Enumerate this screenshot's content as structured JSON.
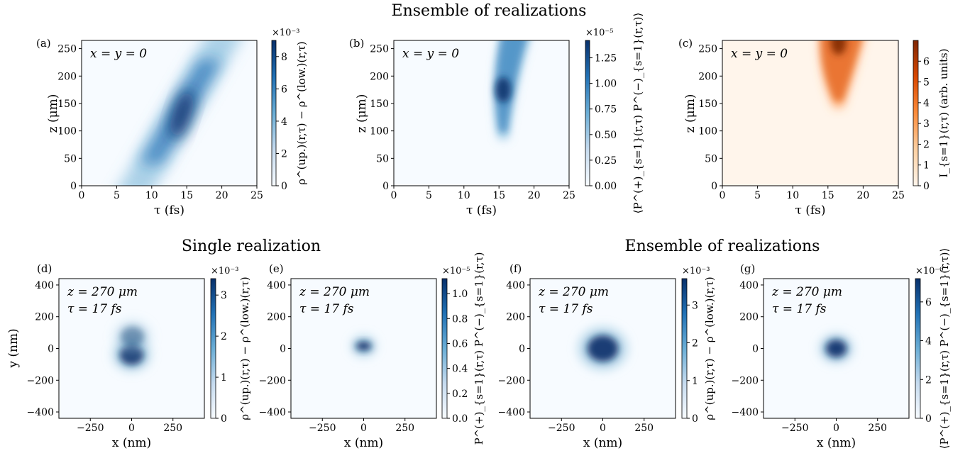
{
  "sections": [
    {
      "id": "top",
      "title": "Ensemble of realizations"
    },
    {
      "id": "bottom-left",
      "title": "Single realization"
    },
    {
      "id": "bottom-right",
      "title": "Ensemble of realizations"
    }
  ],
  "chart_data": [
    {
      "type": "heatmap",
      "panel": "(a)",
      "annotation": [
        "x = y = 0"
      ],
      "xlabel": "τ (fs)",
      "ylabel": "z (μm)",
      "xlim": [
        0,
        25
      ],
      "ylim": [
        0,
        265
      ],
      "xticks": [
        "0",
        "5",
        "10",
        "15",
        "20",
        "25"
      ],
      "yticks": [
        "0",
        "50",
        "100",
        "150",
        "200",
        "250"
      ],
      "colormap": "Blues",
      "color_high": "#08306b",
      "colorbar": {
        "label": "ρ^(up.)(r,τ) − ρ^(low.)(r,τ)",
        "exponent": "×10⁻³",
        "max": 9,
        "ticks": [
          "0",
          "2",
          "4",
          "6",
          "8"
        ]
      },
      "features": [
        {
          "shape": "band",
          "peak_tau": 14.3,
          "peak_z": 130,
          "peak_value": 9
        }
      ]
    },
    {
      "type": "heatmap",
      "panel": "(b)",
      "annotation": [
        "x = y = 0"
      ],
      "xlabel": "τ (fs)",
      "ylabel": "z (μm)",
      "xlim": [
        0,
        25
      ],
      "ylim": [
        0,
        265
      ],
      "xticks": [
        "0",
        "5",
        "10",
        "15",
        "20",
        "25"
      ],
      "yticks": [
        "0",
        "50",
        "100",
        "150",
        "200",
        "250"
      ],
      "colormap": "Blues",
      "color_high": "#08306b",
      "colorbar": {
        "label": "⟨P^(+)_{s=1}(r,τ) P^(−)_{s=1}(r,τ)⟩",
        "exponent": "×10⁻⁵",
        "max": 1.42,
        "ticks": [
          "0.00",
          "0.25",
          "0.50",
          "0.75",
          "1.00",
          "1.25"
        ]
      },
      "features": [
        {
          "shape": "plume",
          "peak_tau": 15.6,
          "peak_z": 175,
          "peak_value": 1.4
        }
      ]
    },
    {
      "type": "heatmap",
      "panel": "(c)",
      "annotation": [
        "x = y = 0"
      ],
      "xlabel": "τ (fs)",
      "ylabel": "z (μm)",
      "xlim": [
        0,
        25
      ],
      "ylim": [
        0,
        265
      ],
      "xticks": [
        "0",
        "5",
        "10",
        "15",
        "20",
        "25"
      ],
      "yticks": [
        "0",
        "50",
        "100",
        "150",
        "200",
        "250"
      ],
      "colormap": "Oranges",
      "color_high": "#7f2704",
      "colorbar": {
        "label": "I_{s=1}(r,τ) (arb. units)",
        "exponent": "",
        "max": 7,
        "ticks": [
          "0",
          "1",
          "2",
          "3",
          "4",
          "5",
          "6"
        ]
      },
      "features": [
        {
          "shape": "plume",
          "peak_tau": 16.5,
          "peak_z": 262,
          "peak_value": 7
        }
      ]
    },
    {
      "type": "heatmap",
      "panel": "(d)",
      "annotation": [
        "z = 270 μm",
        "τ = 17 fs"
      ],
      "xlabel": "x (nm)",
      "ylabel": "y (nm)",
      "xlim": [
        -440,
        440
      ],
      "ylim": [
        -440,
        440
      ],
      "xticks": [
        "−250",
        "0",
        "250"
      ],
      "yticks": [
        "−400",
        "−200",
        "0",
        "200",
        "400"
      ],
      "colormap": "Blues",
      "color_high": "#08306b",
      "colorbar": {
        "label": "ρ^(up.)(r,τ) − ρ^(low.)(r,τ)",
        "exponent": "×10⁻³",
        "max": 3.4,
        "ticks": [
          "0",
          "1",
          "2",
          "3"
        ]
      },
      "features": [
        {
          "shape": "spot",
          "x": 0,
          "y": -40,
          "peak_value": 3.2
        },
        {
          "shape": "spot",
          "x": 5,
          "y": 75,
          "peak_value": 1.7
        }
      ]
    },
    {
      "type": "heatmap",
      "panel": "(e)",
      "annotation": [
        "z = 270 μm",
        "τ = 17 fs"
      ],
      "xlabel": "x (nm)",
      "ylabel": "",
      "xlim": [
        -440,
        440
      ],
      "ylim": [
        -440,
        440
      ],
      "xticks": [
        "−250",
        "0",
        "250"
      ],
      "yticks": [
        "−400",
        "−200",
        "0",
        "200",
        "400"
      ],
      "colormap": "Blues",
      "color_high": "#08306b",
      "colorbar": {
        "label": "P^(+)_{s=1}(r,τ) P^(−)_{s=1}(r,τ)",
        "exponent": "×10⁻⁵",
        "max": 1.12,
        "ticks": [
          "0.0",
          "0.2",
          "0.4",
          "0.6",
          "0.8",
          "1.0"
        ]
      },
      "features": [
        {
          "shape": "spot",
          "x": 0,
          "y": 15,
          "peak_value": 1.1
        }
      ]
    },
    {
      "type": "heatmap",
      "panel": "(f)",
      "annotation": [
        "z = 270 μm",
        "τ = 17 fs"
      ],
      "xlabel": "x (nm)",
      "ylabel": "",
      "xlim": [
        -440,
        440
      ],
      "ylim": [
        -440,
        440
      ],
      "xticks": [
        "−250",
        "0",
        "250"
      ],
      "yticks": [
        "−400",
        "−200",
        "0",
        "200",
        "400"
      ],
      "colormap": "Blues",
      "color_high": "#08306b",
      "colorbar": {
        "label": "ρ^(up.)(r,τ) − ρ^(low.)(r,τ)",
        "exponent": "×10⁻³",
        "max": 3.7,
        "ticks": [
          "0",
          "1",
          "2",
          "3"
        ]
      },
      "features": [
        {
          "shape": "spot",
          "x": 0,
          "y": 0,
          "peak_value": 3.6
        }
      ]
    },
    {
      "type": "heatmap",
      "panel": "(g)",
      "annotation": [
        "z = 270 μm",
        "τ = 17 fs"
      ],
      "xlabel": "x (nm)",
      "ylabel": "",
      "xlim": [
        -440,
        440
      ],
      "ylim": [
        -440,
        440
      ],
      "xticks": [
        "−250",
        "0",
        "250"
      ],
      "yticks": [
        "−400",
        "−200",
        "0",
        "200",
        "400"
      ],
      "colormap": "Blues",
      "color_high": "#08306b",
      "colorbar": {
        "label": "⟨P^(+)_{s=1}(r,τ) P^(−)_{s=1}(r,τ)⟩",
        "exponent": "×10⁻⁶",
        "max": 7.2,
        "ticks": [
          "0",
          "2",
          "4",
          "6"
        ]
      },
      "features": [
        {
          "shape": "spot",
          "x": 0,
          "y": 0,
          "peak_value": 7
        }
      ]
    }
  ]
}
